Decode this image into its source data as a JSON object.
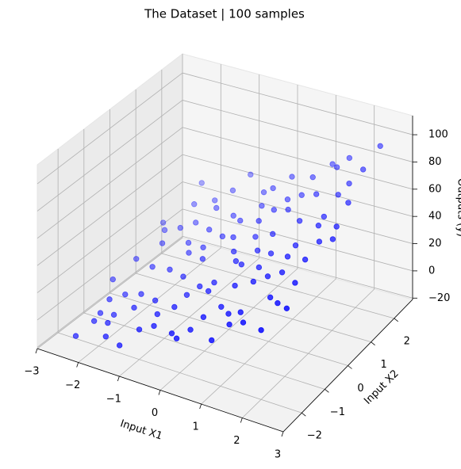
{
  "chart_data": {
    "type": "scatter3d",
    "title": "The Dataset | 100 samples",
    "xlabel": "Input X1",
    "ylabel": "Input X2",
    "zlabel": "Outputs (y)",
    "color": "#0000ff",
    "grid": true,
    "depthshade": true,
    "xlim": [
      -3,
      3
    ],
    "ylim": [
      -2.8,
      2.8
    ],
    "zlim": [
      -21,
      114
    ],
    "xticks": [
      {
        "value": -3,
        "label": "−3"
      },
      {
        "value": -2,
        "label": "−2"
      },
      {
        "value": -1,
        "label": "−1"
      },
      0,
      1,
      2,
      3
    ],
    "yticks": [
      {
        "value": -2,
        "label": "−2"
      },
      {
        "value": -1,
        "label": "−1"
      },
      0,
      1,
      2
    ],
    "zticks": [
      {
        "value": -20,
        "label": "−20"
      },
      0,
      20,
      40,
      60,
      80,
      100
    ],
    "x": [
      -2.5,
      -1.9,
      -1.3,
      -0.7,
      -0.2,
      0.4,
      0.9,
      1.5,
      2.0,
      2.4,
      -2.3,
      -1.7,
      -1.1,
      -0.5,
      0.1,
      0.6,
      1.1,
      1.7,
      2.2,
      -2.0,
      -2.4,
      -1.8,
      -1.2,
      -0.6,
      0.0,
      0.5,
      1.0,
      1.6,
      2.1,
      -0.9,
      -2.2,
      -1.6,
      -1.0,
      -0.4,
      0.2,
      0.7,
      1.3,
      1.8,
      2.3,
      0.3,
      -2.1,
      -1.5,
      -0.9,
      -0.3,
      0.3,
      0.8,
      1.4,
      1.9,
      2.4,
      1.1,
      -2.6,
      -1.4,
      -0.8,
      0.0,
      0.8,
      1.2,
      1.9,
      -0.1,
      -1.9,
      2.2,
      -2.3,
      -1.5,
      -0.9,
      -0.2,
      0.5,
      1.0,
      1.5,
      2.0,
      -2.0,
      0.9,
      -2.5,
      -1.7,
      -1.1,
      -0.5,
      0.2,
      0.6,
      1.3,
      1.7,
      2.3,
      -1.3,
      -2.1,
      -1.2,
      -0.6,
      0.1,
      0.4,
      1.1,
      1.6,
      2.1,
      -0.3,
      0.7,
      -2.4,
      -1.8,
      -0.7,
      0.0,
      0.9,
      1.4,
      1.8,
      2.5,
      -1.0,
      0.3
    ],
    "y": [
      -2.1,
      -1.8,
      -2.3,
      -1.9,
      -2.0,
      -1.7,
      -2.2,
      -1.9,
      -2.0,
      -1.6,
      -1.1,
      -0.8,
      -1.2,
      -0.9,
      -1.0,
      -1.3,
      -0.8,
      -1.1,
      -0.9,
      -1.4,
      0.1,
      -0.2,
      0.3,
      -0.1,
      0.2,
      -0.3,
      0.1,
      -0.2,
      0.3,
      0.4,
      0.9,
      1.2,
      0.8,
      1.1,
      0.9,
      1.3,
      0.8,
      1.0,
      1.2,
      0.6,
      2.2,
      1.8,
      2.3,
      1.9,
      2.1,
      1.7,
      2.2,
      1.9,
      2.4,
      2.5,
      -0.5,
      0.6,
      -1.6,
      -0.6,
      0.5,
      -1.5,
      0.6,
      1.5,
      1.6,
      2.0,
      -1.7,
      -1.4,
      -0.4,
      0.5,
      1.6,
      -0.4,
      0.3,
      -1.3,
      0.5,
      2.0,
      1.3,
      -2.2,
      1.9,
      -1.4,
      -1.9,
      0.2,
      1.5,
      -0.6,
      0.7,
      -0.3,
      -0.8,
      1.4,
      0.7,
      -2.3,
      1.2,
      -1.8,
      2.4,
      -0.3,
      -0.7,
      -0.9,
      -1.3,
      0.9,
      1.3,
      1.8,
      -1.5,
      -0.7,
      1.6,
      0.2,
      -2.0,
      -0.2
    ],
    "z": [
      -17,
      -6,
      -9,
      5,
      6,
      19,
      15,
      29,
      30,
      43,
      -3,
      2,
      9,
      14,
      24,
      22,
      37,
      36,
      48,
      -7,
      8,
      12,
      20,
      27,
      33,
      36,
      42,
      50,
      57,
      25,
      19,
      25,
      31,
      38,
      46,
      52,
      57,
      61,
      72,
      40,
      35,
      33,
      49,
      47,
      60,
      57,
      74,
      71,
      94,
      69,
      0,
      21,
      8,
      23,
      48,
      27,
      62,
      45,
      30,
      82,
      -10,
      3,
      16,
      37,
      53,
      40,
      49,
      38,
      17,
      66,
      16,
      -8,
      42,
      13,
      11,
      39,
      65,
      46,
      63,
      16,
      -2,
      36,
      31,
      10,
      51,
      22,
      79,
      54,
      19,
      32,
      -11,
      24,
      36,
      54,
      23,
      42,
      67,
      64,
      1,
      35
    ]
  }
}
